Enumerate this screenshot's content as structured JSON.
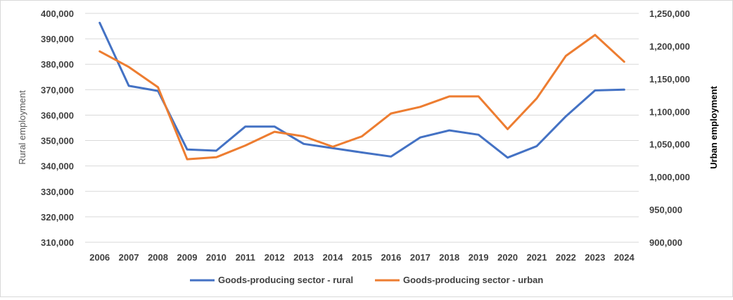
{
  "chart_data": {
    "type": "line",
    "title": "",
    "x": [
      "2006",
      "2007",
      "2008",
      "2009",
      "2010",
      "2011",
      "2012",
      "2013",
      "2014",
      "2015",
      "2016",
      "2017",
      "2018",
      "2019",
      "2020",
      "2021",
      "2022",
      "2023",
      "2024"
    ],
    "y_left": {
      "label": "Rural employment",
      "lim": [
        310000,
        400000
      ],
      "ticks": [
        "310,000",
        "320,000",
        "330,000",
        "340,000",
        "350,000",
        "360,000",
        "370,000",
        "380,000",
        "390,000",
        "400,000"
      ]
    },
    "y_right": {
      "label": "Urban employment",
      "lim": [
        900000,
        1250000
      ],
      "ticks": [
        "900,000",
        "950,000",
        "1,000,000",
        "1,050,000",
        "1,100,000",
        "1,150,000",
        "1,200,000",
        "1,250,000"
      ]
    },
    "grid": true,
    "legend_position": "bottom",
    "series": [
      {
        "name": "Goods-producing sector - rural",
        "axis": "left",
        "color": "#4472C4",
        "values": [
          396300,
          371500,
          369500,
          346500,
          346000,
          355500,
          355500,
          348700,
          347000,
          345300,
          343700,
          351200,
          354000,
          352300,
          343300,
          347800,
          359500,
          369700,
          370000
        ]
      },
      {
        "name": "Goods-producing sector - urban",
        "axis": "right",
        "color": "#ED7D31",
        "values": [
          1192000,
          1168000,
          1137000,
          1027000,
          1030000,
          1048000,
          1069000,
          1062000,
          1046000,
          1062000,
          1097000,
          1107000,
          1123000,
          1123000,
          1073000,
          1120000,
          1185000,
          1217000,
          1176000
        ]
      }
    ]
  }
}
